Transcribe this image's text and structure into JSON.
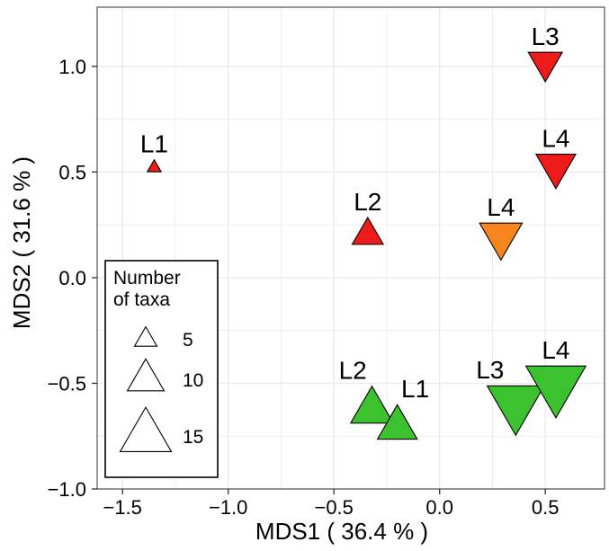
{
  "chart_data": {
    "type": "scatter",
    "title": "",
    "xlabel": "MDS1 ( 36.4 % )",
    "ylabel": "MDS2 ( 31.6 % )",
    "xlim": [
      -1.62,
      0.78
    ],
    "ylim": [
      -1.0,
      1.28
    ],
    "x_ticks": [
      -1.5,
      -1.0,
      -0.5,
      0.0,
      0.5
    ],
    "x_tick_labels": [
      "−1.5",
      "−1.0",
      "−0.5",
      "0.0",
      "0.5"
    ],
    "y_ticks": [
      -1.0,
      -0.5,
      0.0,
      0.5,
      1.0
    ],
    "y_tick_labels": [
      "−1.0",
      "−0.5",
      "0.0",
      "0.5",
      "1.0"
    ],
    "grid": true,
    "colors": {
      "red": "#ee1b1b",
      "orange": "#f7851e",
      "green": "#3cc12f",
      "grid": "#ebebeb",
      "panel_border": "#333333"
    },
    "points": [
      {
        "label": "L1",
        "x": -1.35,
        "y": 0.52,
        "taxa": 2,
        "color": "red",
        "direction": "up",
        "label_pos": "above"
      },
      {
        "label": "L2",
        "x": -0.34,
        "y": 0.2,
        "taxa": 8,
        "color": "red",
        "direction": "up",
        "label_pos": "above"
      },
      {
        "label": "L3",
        "x": 0.5,
        "y": 1.02,
        "taxa": 9,
        "color": "red",
        "direction": "down",
        "label_pos": "above"
      },
      {
        "label": "L4",
        "x": 0.55,
        "y": 0.53,
        "taxa": 11,
        "color": "red",
        "direction": "down",
        "label_pos": "above"
      },
      {
        "label": "L4",
        "x": 0.29,
        "y": 0.2,
        "taxa": 12,
        "color": "orange",
        "direction": "down",
        "label_pos": "above"
      },
      {
        "label": "L2",
        "x": -0.32,
        "y": -0.63,
        "taxa": 12,
        "color": "green",
        "direction": "up",
        "label_pos": "above-left"
      },
      {
        "label": "L1",
        "x": -0.2,
        "y": -0.71,
        "taxa": 11,
        "color": "green",
        "direction": "up",
        "label_pos": "above-right"
      },
      {
        "label": "L3",
        "x": 0.36,
        "y": -0.59,
        "taxa": 17,
        "color": "green",
        "direction": "down",
        "label_pos": "above-left"
      },
      {
        "label": "L4",
        "x": 0.55,
        "y": -0.5,
        "taxa": 18,
        "color": "green",
        "direction": "down",
        "label_pos": "above"
      }
    ],
    "legend": {
      "title_lines": [
        "Number",
        "of taxa"
      ],
      "entries": [
        {
          "label": "5",
          "taxa": 5
        },
        {
          "label": "10",
          "taxa": 10
        },
        {
          "label": "15",
          "taxa": 15
        }
      ],
      "position": "bottom-left"
    }
  }
}
